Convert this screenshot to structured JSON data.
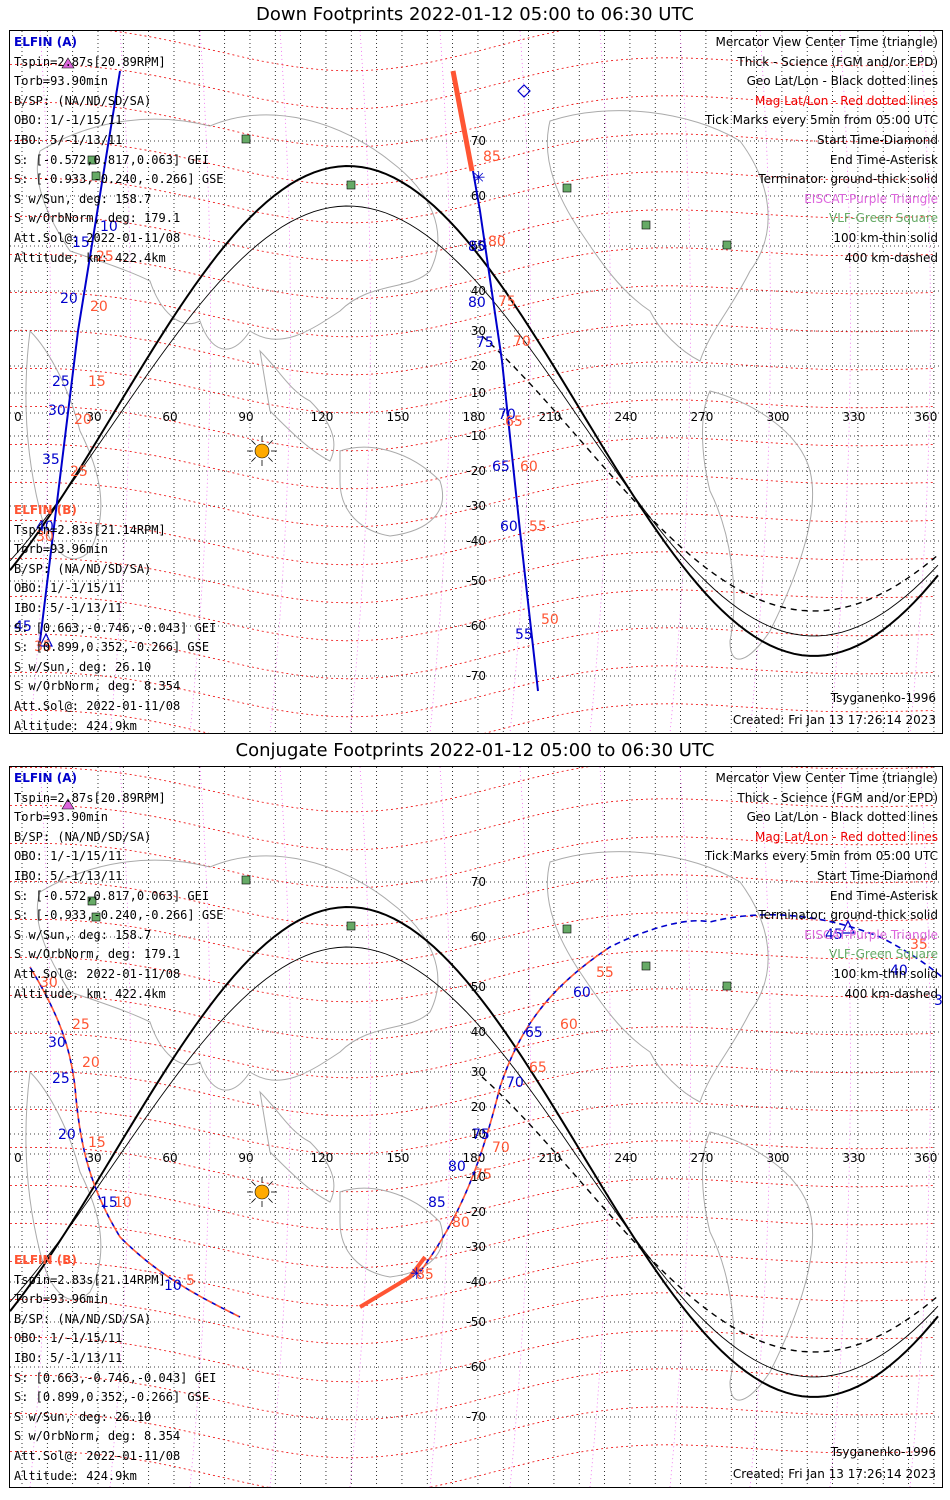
{
  "colors": {
    "elfin_a": "#0000cc",
    "elfin_b": "#ff5533",
    "mag_grid": "#ee0000",
    "eiscat": "#dd66dd",
    "vlf": "#66aa66",
    "sun": "#ffaa00"
  },
  "lon_labels": [
    "0",
    "30",
    "60",
    "90",
    "120",
    "150",
    "180",
    "210",
    "240",
    "270",
    "300",
    "330",
    "360"
  ],
  "lat_labels": [
    "70",
    "60",
    "50",
    "40",
    "30",
    "20",
    "10",
    "-10",
    "-20",
    "-30",
    "-40",
    "-50",
    "-60",
    "-70"
  ],
  "legend": [
    {
      "text": "Mercator View Center Time (triangle)",
      "color": "#000000"
    },
    {
      "text": "Thick - Science (FGM and/or EPD)",
      "color": "#000000"
    },
    {
      "text": "Geo Lat/Lon - Black dotted lines",
      "color": "#000000"
    },
    {
      "text": "Mag Lat/Lon - Red dotted lines",
      "color": "#ee0000"
    },
    {
      "text": "Tick Marks every 5min from 05:00 UTC",
      "color": "#000000"
    },
    {
      "text": "Start Time-Diamond",
      "color": "#000000"
    },
    {
      "text": "End Time-Asterisk",
      "color": "#000000"
    },
    {
      "text": "Terminator: ground-thick solid",
      "color": "#000000"
    },
    {
      "text": "EISCAT-Purple Triangle",
      "color": "#dd66dd"
    },
    {
      "text": "VLF-Green Square",
      "color": "#66aa66"
    },
    {
      "text": "100 km-thin solid",
      "color": "#000000"
    },
    {
      "text": "400 km-dashed",
      "color": "#000000"
    }
  ],
  "elfin_a": {
    "header": "ELFIN (A)",
    "lines": [
      "Tspin=2.87s[20.89RPM]",
      "Torb=93.90min",
      "B/SP: (NA/ND/SD/SA)",
      "OBO: 1/-1/15/11",
      "IBO: 5/-1/13/11",
      "S: [-0.572,0.817,0.063] GEI",
      "S: [-0.933,-0.240,-0.266] GSE",
      "S w/Sun, deg: 158.7",
      "S w/OrbNorm, deg: 179.1",
      "Att.Sol@: 2022-01-11/08",
      "Altitude, km: 422.4km"
    ]
  },
  "elfin_b": {
    "header": "ELFIN (B)",
    "lines": [
      "Tspin=2.83s[21.14RPM]",
      "Torb=93.96min",
      "B/SP: (NA/ND/SD/SA)",
      "OBO: 1/-1/15/11",
      "IBO: 5/-1/13/11",
      "S: [0.663,-0.746,-0.043] GEI",
      "S: [0.899,0.352,-0.266] GSE",
      "S w/Sun, deg: 26.10",
      "S w/OrbNorm, deg: 8.354",
      "Att.Sol@: 2022-01-11/08",
      "Altitude: 424.9km"
    ]
  },
  "model": "Tsyganenko-1996",
  "created": "Created: Fri Jan 13 17:26:14 2023",
  "panels": [
    {
      "title": "Down Footprints 2022-01-12 05:00 to 06:30 UTC",
      "a_ticks": [
        "10",
        "15",
        "20",
        "25",
        "30",
        "35",
        "40",
        "45",
        "85",
        "80",
        "75",
        "70",
        "65",
        "60",
        "55"
      ],
      "b_ticks": [
        "25",
        "20",
        "15",
        "20",
        "25",
        "30",
        "35",
        "85",
        "80",
        "75",
        "70",
        "65",
        "60",
        "55",
        "50"
      ]
    },
    {
      "title": "Conjugate Footprints 2022-01-12 05:00 to 06:30 UTC",
      "a_ticks": [
        "30",
        "25",
        "20",
        "15",
        "10",
        "85",
        "80",
        "75",
        "70",
        "65",
        "60",
        "45",
        "40",
        "35"
      ],
      "b_ticks": [
        "30",
        "25",
        "20",
        "15",
        "10",
        "5",
        "85",
        "80",
        "75",
        "70",
        "65",
        "60",
        "55",
        "35"
      ]
    }
  ]
}
